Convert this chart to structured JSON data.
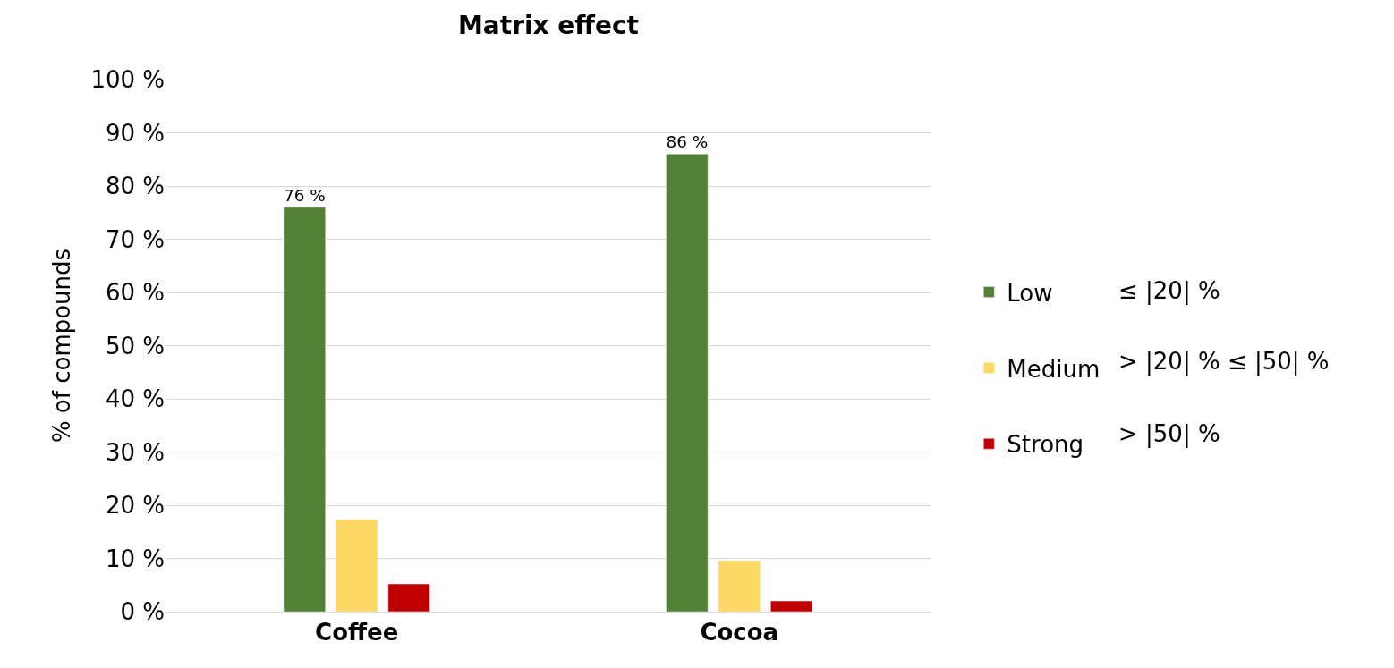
{
  "chart_data": {
    "type": "bar",
    "title": "Matrix effect",
    "ylabel": "% of compounds",
    "categories": [
      "Coffee",
      "Cocoa"
    ],
    "series": [
      {
        "name": "Low",
        "color": "#538135",
        "values": [
          76,
          86
        ],
        "value_labels": [
          "76 %",
          "86 %"
        ]
      },
      {
        "name": "Medium",
        "color": "#ffd966",
        "values": [
          17.3,
          9.6
        ]
      },
      {
        "name": "Strong",
        "color": "#c00000",
        "values": [
          5.2,
          2.0
        ]
      }
    ],
    "ylim": [
      0,
      100
    ],
    "yticks": [
      {
        "value": 0,
        "label": "0 %"
      },
      {
        "value": 10,
        "label": "10 %"
      },
      {
        "value": 20,
        "label": "20 %"
      },
      {
        "value": 30,
        "label": "30 %"
      },
      {
        "value": 40,
        "label": "40 %"
      },
      {
        "value": 50,
        "label": "50 %"
      },
      {
        "value": 60,
        "label": "60 %"
      },
      {
        "value": 70,
        "label": "70 %"
      },
      {
        "value": 80,
        "label": "80 %"
      },
      {
        "value": 90,
        "label": "90 %"
      },
      {
        "value": 100,
        "label": "100 %"
      }
    ],
    "annotations": [
      "≤ |20| %",
      "> |20| % ≤ |50| %",
      "> |50| %"
    ],
    "grid": "y",
    "legend": "right"
  }
}
